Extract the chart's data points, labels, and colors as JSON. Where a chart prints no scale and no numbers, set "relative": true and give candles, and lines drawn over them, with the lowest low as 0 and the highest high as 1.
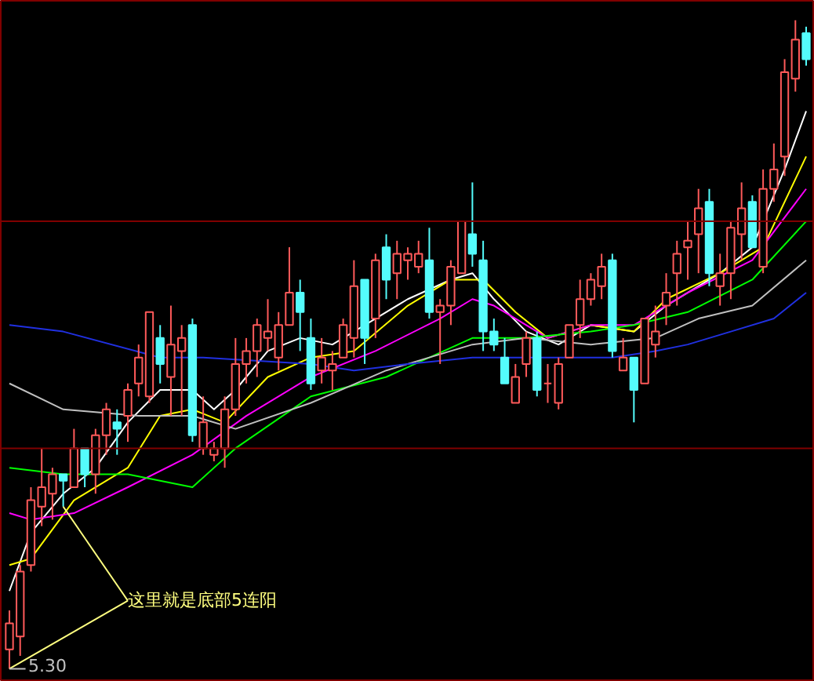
{
  "chart_data": {
    "type": "candlestick",
    "relative": true,
    "grid": false,
    "categories": [
      null,
      null,
      null,
      null,
      null,
      null,
      null,
      null,
      null,
      null,
      null,
      null,
      null,
      null,
      null,
      null,
      null,
      null,
      null,
      null,
      null,
      null,
      null,
      null,
      null,
      null,
      null,
      null,
      null,
      null,
      null,
      null,
      null,
      null,
      null,
      null,
      null,
      null,
      null,
      null,
      null,
      null,
      null,
      null,
      null,
      null,
      null,
      null,
      null,
      null,
      null,
      null,
      null,
      null,
      null,
      null,
      null,
      null,
      null,
      null,
      null,
      null,
      null,
      null,
      null,
      null,
      null,
      null,
      null,
      null,
      null,
      null,
      null,
      null,
      null
    ],
    "ohlc": [
      [
        0.03,
        0.09,
        0,
        0.07
      ],
      [
        0.05,
        0.16,
        0.02,
        0.15
      ],
      [
        0.16,
        0.28,
        0.15,
        0.26
      ],
      [
        0.25,
        0.34,
        0.22,
        0.28
      ],
      [
        0.27,
        0.31,
        0.23,
        0.3
      ],
      [
        0.3,
        0.3,
        0.25,
        0.29
      ],
      [
        0.28,
        0.37,
        0.28,
        0.34
      ],
      [
        0.34,
        0.34,
        0.28,
        0.3
      ],
      [
        0.3,
        0.37,
        0.27,
        0.36
      ],
      [
        0.36,
        0.41,
        0.33,
        0.4
      ],
      [
        0.38,
        0.4,
        0.33,
        0.37
      ],
      [
        0.39,
        0.44,
        0.35,
        0.43
      ],
      [
        0.44,
        0.5,
        0.42,
        0.48
      ],
      [
        0.42,
        0.55,
        0.41,
        0.55
      ],
      [
        0.51,
        0.53,
        0.44,
        0.47
      ],
      [
        0.45,
        0.56,
        0.39,
        0.5
      ],
      [
        0.49,
        0.53,
        0.39,
        0.51
      ],
      [
        0.53,
        0.54,
        0.35,
        0.36
      ],
      [
        0.34,
        0.42,
        0.33,
        0.38
      ],
      [
        0.33,
        0.35,
        0.32,
        0.34
      ],
      [
        0.34,
        0.42,
        0.31,
        0.4
      ],
      [
        0.4,
        0.51,
        0.39,
        0.47
      ],
      [
        0.47,
        0.51,
        0.44,
        0.49
      ],
      [
        0.49,
        0.54,
        0.45,
        0.53
      ],
      [
        0.51,
        0.57,
        0.49,
        0.52
      ],
      [
        0.48,
        0.55,
        0.46,
        0.53
      ],
      [
        0.53,
        0.65,
        0.53,
        0.58
      ],
      [
        0.58,
        0.6,
        0.49,
        0.55
      ],
      [
        0.51,
        0.54,
        0.43,
        0.44
      ],
      [
        0.46,
        0.51,
        0.44,
        0.48
      ],
      [
        0.46,
        0.49,
        0.43,
        0.47
      ],
      [
        0.48,
        0.54,
        0.48,
        0.53
      ],
      [
        0.51,
        0.63,
        0.48,
        0.59
      ],
      [
        0.6,
        0.6,
        0.47,
        0.51
      ],
      [
        0.54,
        0.64,
        0.51,
        0.63
      ],
      [
        0.65,
        0.67,
        0.57,
        0.6
      ],
      [
        0.61,
        0.66,
        0.57,
        0.64
      ],
      [
        0.63,
        0.65,
        0.6,
        0.64
      ],
      [
        0.62,
        0.66,
        0.61,
        0.64
      ],
      [
        0.63,
        0.68,
        0.54,
        0.55
      ],
      [
        0.55,
        0.57,
        0.47,
        0.56
      ],
      [
        0.56,
        0.63,
        0.53,
        0.62
      ],
      [
        0.61,
        0.69,
        0.61,
        0.69
      ],
      [
        0.67,
        0.75,
        0.62,
        0.64
      ],
      [
        0.63,
        0.66,
        0.49,
        0.52
      ],
      [
        0.52,
        0.54,
        0.49,
        0.5
      ],
      [
        0.48,
        0.51,
        0.44,
        0.44
      ],
      [
        0.41,
        0.47,
        0.41,
        0.45
      ],
      [
        0.47,
        0.52,
        0.45,
        0.51
      ],
      [
        0.51,
        0.52,
        0.42,
        0.43
      ],
      [
        0.44,
        0.47,
        0.41,
        0.44
      ],
      [
        0.41,
        0.48,
        0.4,
        0.47
      ],
      [
        0.48,
        0.53,
        0.48,
        0.53
      ],
      [
        0.53,
        0.6,
        0.51,
        0.57
      ],
      [
        0.57,
        0.61,
        0.56,
        0.6
      ],
      [
        0.59,
        0.64,
        0.57,
        0.62
      ],
      [
        0.63,
        0.64,
        0.48,
        0.49
      ],
      [
        0.46,
        0.51,
        0.46,
        0.48
      ],
      [
        0.48,
        0.48,
        0.38,
        0.43
      ],
      [
        0.44,
        0.54,
        0.44,
        0.54
      ],
      [
        0.5,
        0.56,
        0.48,
        0.52
      ],
      [
        0.56,
        0.61,
        0.53,
        0.58
      ],
      [
        0.61,
        0.66,
        0.56,
        0.64
      ],
      [
        0.65,
        0.69,
        0.6,
        0.66
      ],
      [
        0.67,
        0.74,
        0.61,
        0.71
      ],
      [
        0.72,
        0.74,
        0.59,
        0.61
      ],
      [
        0.59,
        0.64,
        0.56,
        0.61
      ],
      [
        0.61,
        0.69,
        0.57,
        0.68
      ],
      [
        0.67,
        0.75,
        0.63,
        0.71
      ],
      [
        0.72,
        0.73,
        0.65,
        0.65
      ],
      [
        0.62,
        0.77,
        0.61,
        0.74
      ],
      [
        0.74,
        0.81,
        0.72,
        0.77
      ],
      [
        0.79,
        0.94,
        0.76,
        0.92
      ],
      [
        0.91,
        1,
        0.89,
        0.97
      ],
      [
        0.98,
        0.99,
        0.93,
        0.94
      ]
    ],
    "series": [
      {
        "type": "line",
        "color": "#ffffff",
        "values": [
          0.12,
          null,
          0.21,
          null,
          null,
          0.27,
          null,
          null,
          0.31,
          null,
          null,
          0.38,
          null,
          null,
          0.43,
          null,
          null,
          0.43,
          null,
          0.4,
          null,
          0.43,
          null,
          null,
          0.49,
          null,
          null,
          0.51,
          null,
          null,
          0.5,
          null,
          null,
          null,
          0.54,
          null,
          null,
          0.57,
          null,
          null,
          null,
          0.6,
          null,
          0.61,
          null,
          0.57,
          null,
          null,
          0.52,
          null,
          null,
          0.5,
          null,
          null,
          0.53,
          null,
          null,
          null,
          0.52,
          null,
          null,
          0.56,
          null,
          null,
          null,
          null,
          0.61,
          null,
          null,
          0.65,
          null,
          null,
          0.77,
          null,
          0.86
        ]
      },
      {
        "type": "line",
        "color": "#ffff00",
        "values": [
          0.16,
          null,
          0.17,
          null,
          null,
          null,
          0.26,
          null,
          null,
          null,
          null,
          0.31,
          null,
          null,
          0.39,
          null,
          null,
          0.4,
          null,
          null,
          0.38,
          null,
          null,
          null,
          0.45,
          null,
          null,
          null,
          0.48,
          null,
          null,
          null,
          0.49,
          null,
          null,
          null,
          null,
          0.56,
          null,
          null,
          null,
          0.6,
          null,
          null,
          0.6,
          null,
          null,
          0.55,
          null,
          null,
          0.51,
          null,
          null,
          null,
          0.53,
          null,
          null,
          null,
          0.52,
          null,
          null,
          0.57,
          null,
          null,
          null,
          null,
          0.61,
          null,
          null,
          null,
          0.65,
          null,
          null,
          null,
          0.79
        ]
      },
      {
        "type": "line",
        "color": "#ff00ff",
        "values": [
          0.24,
          null,
          0.23,
          null,
          null,
          null,
          0.24,
          null,
          null,
          null,
          null,
          0.28,
          null,
          null,
          null,
          null,
          null,
          0.33,
          null,
          null,
          null,
          null,
          0.39,
          null,
          null,
          null,
          null,
          null,
          0.45,
          null,
          null,
          null,
          null,
          null,
          0.49,
          null,
          null,
          null,
          null,
          null,
          0.54,
          null,
          null,
          0.57,
          null,
          0.56,
          null,
          null,
          null,
          null,
          0.51,
          null,
          null,
          null,
          0.53,
          null,
          null,
          null,
          0.53,
          null,
          null,
          null,
          null,
          0.58,
          null,
          null,
          null,
          null,
          null,
          0.63,
          null,
          null,
          null,
          null,
          0.74
        ]
      },
      {
        "type": "line",
        "color": "#00ff00",
        "values": [
          0.31,
          null,
          null,
          null,
          null,
          0.3,
          null,
          null,
          null,
          null,
          null,
          0.3,
          null,
          null,
          null,
          null,
          null,
          0.28,
          null,
          null,
          null,
          0.34,
          null,
          null,
          null,
          null,
          null,
          null,
          0.42,
          null,
          null,
          null,
          null,
          null,
          null,
          0.45,
          null,
          null,
          null,
          null,
          null,
          null,
          null,
          0.51,
          null,
          null,
          null,
          null,
          0.51,
          null,
          null,
          null,
          null,
          null,
          0.52,
          null,
          null,
          null,
          0.53,
          null,
          null,
          null,
          null,
          0.55,
          null,
          null,
          null,
          null,
          null,
          0.6,
          null,
          null,
          null,
          null,
          0.69
        ]
      },
      {
        "type": "line",
        "color": "#c0c0c0",
        "values": [
          0.44,
          null,
          null,
          null,
          null,
          0.4,
          null,
          null,
          null,
          null,
          null,
          null,
          0.39,
          null,
          null,
          null,
          null,
          0.39,
          null,
          null,
          null,
          0.37,
          null,
          null,
          null,
          null,
          null,
          null,
          0.41,
          null,
          null,
          null,
          null,
          null,
          null,
          0.46,
          null,
          null,
          null,
          null,
          null,
          null,
          null,
          0.5,
          null,
          null,
          null,
          null,
          0.51,
          null,
          null,
          null,
          null,
          null,
          0.5,
          null,
          null,
          null,
          null,
          null,
          0.51,
          null,
          null,
          null,
          0.54,
          null,
          null,
          null,
          null,
          0.56,
          null,
          null,
          null,
          null,
          0.63
        ]
      },
      {
        "type": "line",
        "color": "#2030e0",
        "values": [
          0.53,
          null,
          null,
          null,
          null,
          0.52,
          null,
          null,
          null,
          null,
          null,
          null,
          null,
          null,
          0.48,
          null,
          null,
          null,
          0.48,
          null,
          null,
          null,
          null,
          null,
          null,
          null,
          null,
          null,
          0.47,
          null,
          null,
          null,
          0.46,
          null,
          null,
          null,
          null,
          0.47,
          null,
          null,
          null,
          null,
          null,
          0.48,
          null,
          null,
          null,
          null,
          0.48,
          null,
          null,
          null,
          null,
          null,
          null,
          null,
          0.48,
          null,
          null,
          null,
          0.49,
          null,
          null,
          0.5,
          null,
          null,
          null,
          0.52,
          null,
          null,
          null,
          0.54,
          null,
          null,
          0.58
        ]
      }
    ],
    "ref_lines": [
      {
        "axis": "y",
        "value": 0.69,
        "color": "#800000"
      },
      {
        "axis": "y",
        "value": 0.34,
        "color": "#800000"
      }
    ],
    "annotations": [
      "这里就是底部5连阳",
      "5.30"
    ]
  }
}
